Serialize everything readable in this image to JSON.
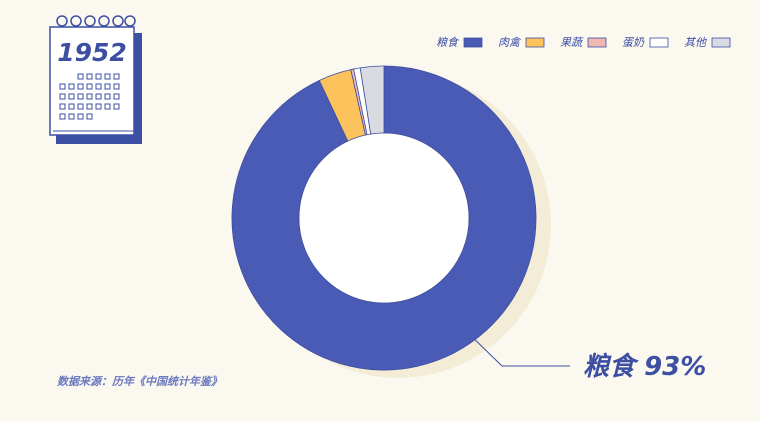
{
  "chart_data": {
    "type": "donut",
    "year": "1952",
    "categories": [
      "粮食",
      "肉禽",
      "果蔬",
      "蛋奶",
      "其他"
    ],
    "values": [
      93,
      3.5,
      0.3,
      0.7,
      2.5
    ],
    "value_labels": [
      "93%",
      null,
      null,
      null,
      null
    ],
    "colors": [
      "#4a5bb5",
      "#fcc35c",
      "#efb9b1",
      "#ffffff",
      "#d9dbe0"
    ],
    "legend": "top-right",
    "source": "数据来源：历年《中国统计年鉴》"
  }
}
